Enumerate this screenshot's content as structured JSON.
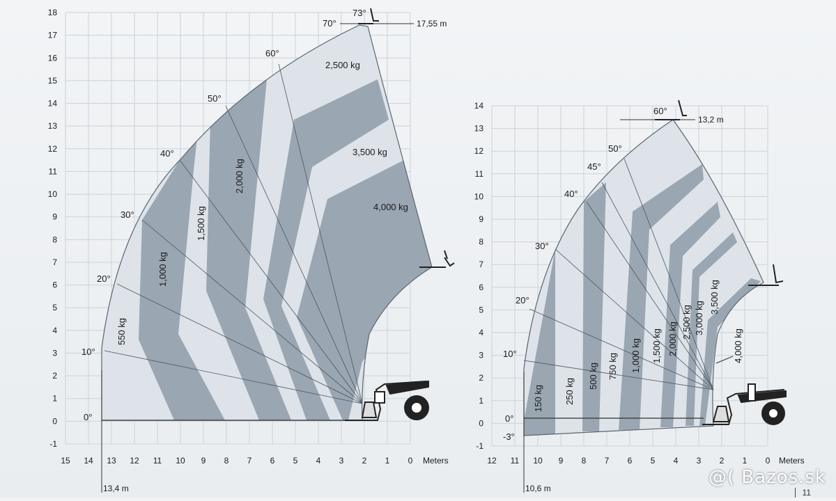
{
  "colors": {
    "background": "#eef1f3",
    "grid": "#c9d2da",
    "light_zone": "#dde3e9",
    "dark_zone": "#9aa6b1",
    "outline": "#5a6570",
    "axis": "#333333",
    "tip": "#c0392b"
  },
  "units_label": "Meters",
  "diagrams": [
    {
      "id": "left",
      "y_ticks": [
        "-1",
        "0",
        "1",
        "2",
        "3",
        "4",
        "5",
        "6",
        "7",
        "8",
        "9",
        "10",
        "11",
        "12",
        "13",
        "14",
        "15",
        "16",
        "17",
        "18"
      ],
      "x_ticks": [
        "15",
        "14",
        "13",
        "12",
        "11",
        "10",
        "9",
        "8",
        "7",
        "6",
        "5",
        "4",
        "3",
        "2",
        "1",
        "0"
      ],
      "max_height_label": "17,55 m",
      "max_reach_label": "13,4 m",
      "angle_labels": [
        "0°",
        "10°",
        "20°",
        "30°",
        "40°",
        "50°",
        "60°",
        "70°",
        "73°"
      ],
      "load_labels": [
        "550 kg",
        "1,000 kg",
        "1,500 kg",
        "2,000 kg",
        "2,500 kg",
        "3,500 kg",
        "4,000 kg"
      ]
    },
    {
      "id": "right",
      "y_ticks": [
        "-1",
        "0",
        "1",
        "2",
        "3",
        "4",
        "5",
        "6",
        "7",
        "8",
        "9",
        "10",
        "11",
        "12",
        "13",
        "14"
      ],
      "x_ticks": [
        "12",
        "11",
        "10",
        "9",
        "8",
        "7",
        "6",
        "5",
        "4",
        "3",
        "2",
        "1",
        "0"
      ],
      "max_height_label": "13,2 m",
      "max_reach_label": "10,6 m",
      "angle_labels": [
        "-3°",
        "0°",
        "10°",
        "20°",
        "30°",
        "40°",
        "45°",
        "50°",
        "60°"
      ],
      "load_labels": [
        "150 kg",
        "250 kg",
        "500 kg",
        "750 kg",
        "1,000 kg",
        "1,500 kg",
        "2,000 kg",
        "2,500 kg",
        "3,000 kg",
        "3,500 kg",
        "4,000 kg"
      ]
    }
  ],
  "watermark": "@( Bazos.sk",
  "page_number": "11"
}
